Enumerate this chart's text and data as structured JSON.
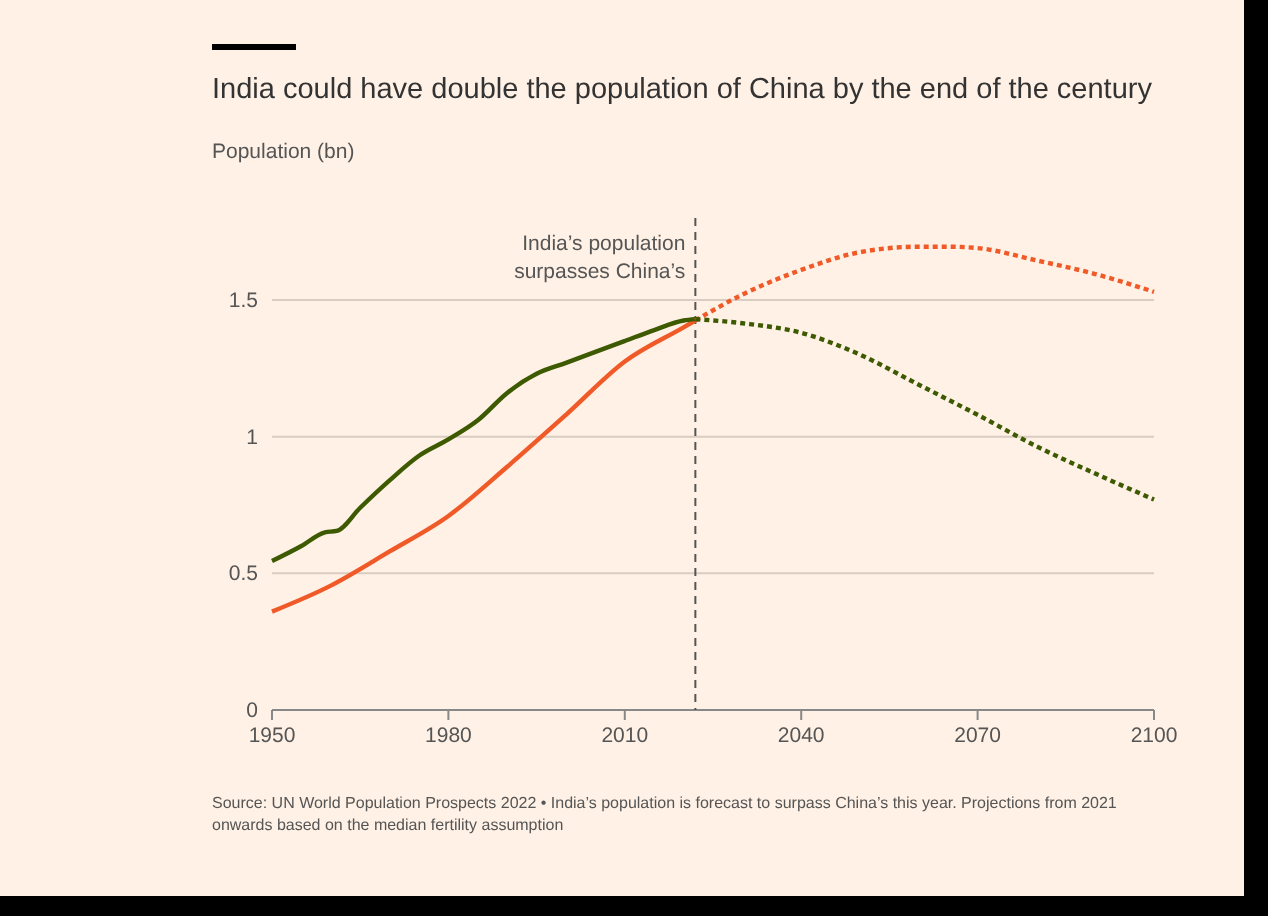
{
  "chart_data": {
    "type": "line",
    "title": "India could have double the population of China by the end of the century",
    "ylabel": "Population (bn)",
    "xlim": [
      1950,
      2100
    ],
    "xticks": [
      1950,
      1980,
      2010,
      2040,
      2070,
      2100
    ],
    "ylim": [
      0,
      1.8
    ],
    "yticks": [
      0,
      0.5,
      1,
      1.5
    ],
    "grid": "y",
    "marker": "none",
    "series": [
      {
        "color": "#f05a28",
        "line_style": "solid",
        "x": [
          1950,
          1960,
          1970,
          1980,
          1990,
          2000,
          2010,
          2020,
          2022
        ],
        "values": [
          0.36,
          0.455,
          0.58,
          0.71,
          0.89,
          1.08,
          1.275,
          1.4,
          1.425
        ]
      },
      {
        "color": "#3d5a00",
        "line_style": "solid",
        "x": [
          1950,
          1955,
          1959,
          1961,
          1965,
          1970,
          1975,
          1980,
          1985,
          1990,
          1995,
          2000,
          2005,
          2010,
          2015,
          2020,
          2022
        ],
        "values": [
          0.545,
          0.6,
          0.65,
          0.655,
          0.74,
          0.84,
          0.93,
          0.99,
          1.06,
          1.16,
          1.23,
          1.27,
          1.31,
          1.35,
          1.39,
          1.425,
          1.43
        ]
      },
      {
        "color": "#f05a28",
        "line_style": "dotted",
        "x": [
          2022,
          2030,
          2040,
          2050,
          2060,
          2065,
          2070,
          2080,
          2090,
          2100
        ],
        "values": [
          1.425,
          1.52,
          1.61,
          1.675,
          1.695,
          1.695,
          1.69,
          1.645,
          1.595,
          1.53
        ]
      },
      {
        "color": "#3d5a00",
        "line_style": "dotted",
        "x": [
          2022,
          2030,
          2040,
          2050,
          2060,
          2070,
          2080,
          2090,
          2100
        ],
        "values": [
          1.43,
          1.415,
          1.38,
          1.3,
          1.19,
          1.08,
          0.965,
          0.865,
          0.77
        ]
      }
    ],
    "ref_lines": [
      {
        "axis": "x",
        "value": 2022,
        "label": "India’s population\nsurpasses China’s",
        "line_style": "dashed",
        "color": "#555555"
      }
    ],
    "annotations": [
      "Source: UN World Population Prospects 2022 • India’s population is forecast to surpass China’s this year. Projections from 2021 onwards based on the median fertility assumption"
    ]
  }
}
